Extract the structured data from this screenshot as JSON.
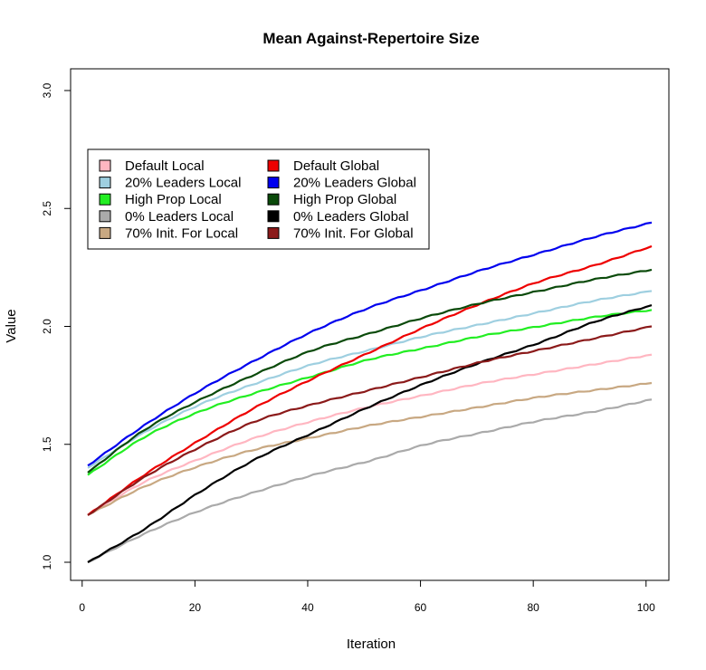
{
  "chart_data": {
    "type": "line",
    "title": "Mean Against-Repertoire Size",
    "xlabel": "Iteration",
    "ylabel": "Value",
    "xlim": [
      1,
      101
    ],
    "ylim": [
      1.0,
      3.0
    ],
    "x_ticks": [
      0,
      20,
      40,
      60,
      80,
      100
    ],
    "x_tick_labels": [
      "0",
      "20",
      "40",
      "60",
      "80",
      "100"
    ],
    "y_ticks": [
      1.0,
      1.5,
      2.0,
      2.5,
      3.0
    ],
    "y_tick_labels": [
      "1.0",
      "1.5",
      "2.0",
      "2.5",
      "3.0"
    ],
    "grid": false,
    "legend_position": "top-left",
    "x_points": [
      1,
      11,
      21,
      31,
      41,
      51,
      61,
      71,
      81,
      91,
      101
    ],
    "series": [
      {
        "name": "Default Local",
        "color": "#ffb6c1",
        "values": [
          1.2,
          1.34,
          1.44,
          1.53,
          1.6,
          1.66,
          1.71,
          1.76,
          1.8,
          1.84,
          1.88
        ]
      },
      {
        "name": "20% Leaders Local",
        "color": "#9ecfe0",
        "values": [
          1.4,
          1.55,
          1.67,
          1.76,
          1.84,
          1.9,
          1.96,
          2.01,
          2.06,
          2.11,
          2.15
        ]
      },
      {
        "name": "High Prop Local",
        "color": "#22ee22",
        "values": [
          1.37,
          1.53,
          1.64,
          1.72,
          1.79,
          1.86,
          1.91,
          1.96,
          2.0,
          2.04,
          2.07
        ]
      },
      {
        "name": "0% Leaders Local",
        "color": "#aaaaaa",
        "values": [
          1.0,
          1.12,
          1.22,
          1.3,
          1.37,
          1.43,
          1.5,
          1.55,
          1.6,
          1.64,
          1.69
        ]
      },
      {
        "name": "70% Init. For Local",
        "color": "#c8a882",
        "values": [
          1.2,
          1.32,
          1.41,
          1.48,
          1.53,
          1.58,
          1.62,
          1.66,
          1.7,
          1.73,
          1.76
        ]
      },
      {
        "name": "Default Global",
        "color": "#ee0000",
        "values": [
          1.2,
          1.37,
          1.52,
          1.66,
          1.78,
          1.89,
          2.0,
          2.1,
          2.19,
          2.26,
          2.34
        ]
      },
      {
        "name": "20% Leaders Global",
        "color": "#0000ee",
        "values": [
          1.41,
          1.58,
          1.73,
          1.86,
          1.98,
          2.08,
          2.16,
          2.24,
          2.31,
          2.38,
          2.44
        ]
      },
      {
        "name": "High Prop Global",
        "color": "#0a4a0a",
        "values": [
          1.38,
          1.56,
          1.69,
          1.8,
          1.9,
          1.97,
          2.04,
          2.1,
          2.15,
          2.2,
          2.24
        ]
      },
      {
        "name": "0% Leaders Global",
        "color": "#000000",
        "values": [
          1.0,
          1.14,
          1.3,
          1.44,
          1.55,
          1.66,
          1.76,
          1.85,
          1.93,
          2.02,
          2.09
        ]
      },
      {
        "name": "70% Init. For Global",
        "color": "#8b1a1a",
        "values": [
          1.2,
          1.36,
          1.49,
          1.6,
          1.67,
          1.73,
          1.79,
          1.85,
          1.9,
          1.95,
          2.0
        ]
      }
    ]
  }
}
